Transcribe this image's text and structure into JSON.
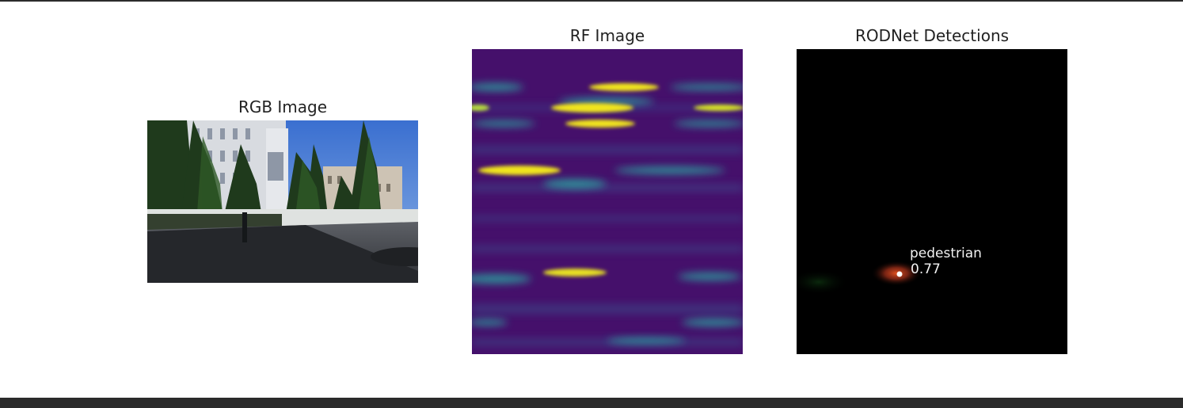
{
  "panels": {
    "rgb": {
      "title": "RGB Image"
    },
    "rf": {
      "title": "RF Image"
    },
    "detections": {
      "title": "RODNet Detections"
    }
  },
  "detection": {
    "class_label": "pedestrian",
    "score": "0.77"
  },
  "colors": {
    "rf_background": "#45106b",
    "rf_highlight": "#f1e51d",
    "rf_mid": "#2aa9a1",
    "detection_glow": "#c0361a",
    "detection_bg": "#000000",
    "frame_border": "#2b2b2b"
  }
}
